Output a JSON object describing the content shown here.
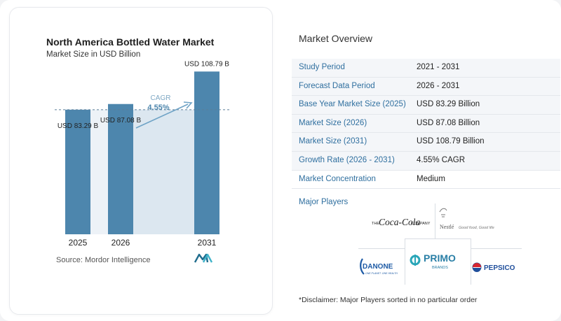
{
  "chart_data": {
    "type": "bar",
    "title": "North America Bottled Water Market",
    "subtitle": "Market Size in USD Billion",
    "categories": [
      "2025",
      "2026",
      "2031"
    ],
    "values": [
      83.29,
      87.08,
      108.79
    ],
    "value_labels": [
      "USD 83.29 B",
      "USD 87.08 B",
      "USD 108.79 B"
    ],
    "ylim": [
      0,
      115
    ],
    "xlabel": "",
    "ylabel": "",
    "grid": false,
    "annotation": {
      "label": "CAGR",
      "value": "4.55%"
    },
    "bar_color": "#4d86ad",
    "accent_color": "#6fa3c6",
    "highlight_color": "#dce7f0"
  },
  "source": "Source:  Mordor Intelligence",
  "overview": {
    "title": "Market Overview",
    "rows": [
      {
        "label": "Study Period",
        "value": "2021 - 2031"
      },
      {
        "label": "Forecast Data Period",
        "value": "2026 - 2031"
      },
      {
        "label": "Base Year Market Size (2025)",
        "value": "USD 83.29 Billion"
      },
      {
        "label": "Market Size (2026)",
        "value": "USD 87.08 Billion"
      },
      {
        "label": "Market Size (2031)",
        "value": "USD 108.79 Billion"
      },
      {
        "label": "Growth Rate (2026 - 2031)",
        "value": "4.55% CAGR"
      },
      {
        "label": "Market Concentration",
        "value": "Medium"
      }
    ],
    "players_label": "Major Players",
    "players": [
      {
        "name": "coca-cola",
        "pre": "THE",
        "brand": "Coca-Cola",
        "post": "COMPANY"
      },
      {
        "name": "nestle",
        "brand": "Nestlé",
        "tagline": "Good food, Good life"
      },
      {
        "name": "danone",
        "brand": "DANONE",
        "tagline": "ONE PLANET. ONE HEALTH"
      },
      {
        "name": "primo",
        "brand": "PRIMO",
        "tagline": "BRANDS"
      },
      {
        "name": "pepsico",
        "brand": "PEPSICO"
      }
    ],
    "disclaimer": "*Disclaimer: Major Players sorted in no particular order"
  }
}
